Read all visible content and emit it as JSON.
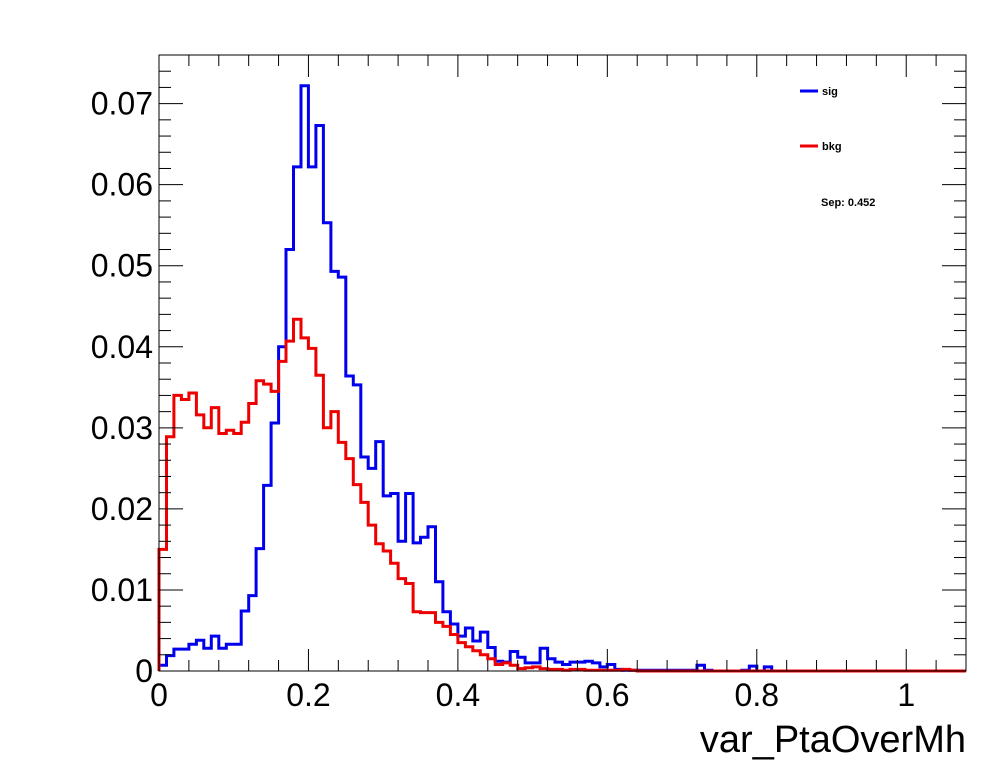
{
  "chart_data": {
    "type": "line",
    "title": "",
    "xlabel": "var_PtaOverMh",
    "ylabel": "",
    "xlim": [
      0,
      1.08
    ],
    "ylim": [
      0,
      0.076
    ],
    "grid": false,
    "legend_position": "top-right",
    "x_ticks": [
      {
        "value": 0,
        "label": "0"
      },
      {
        "value": 0.2,
        "label": "0.2"
      },
      {
        "value": 0.4,
        "label": "0.4"
      },
      {
        "value": 0.6,
        "label": "0.6"
      },
      {
        "value": 0.8,
        "label": "0.8"
      },
      {
        "value": 1.0,
        "label": "1"
      }
    ],
    "y_ticks": [
      {
        "value": 0,
        "label": "0"
      },
      {
        "value": 0.01,
        "label": "0.01"
      },
      {
        "value": 0.02,
        "label": "0.02"
      },
      {
        "value": 0.03,
        "label": "0.03"
      },
      {
        "value": 0.04,
        "label": "0.04"
      },
      {
        "value": 0.05,
        "label": "0.05"
      },
      {
        "value": 0.06,
        "label": "0.06"
      },
      {
        "value": 0.07,
        "label": "0.07"
      }
    ],
    "bin_width": 0.01,
    "series": [
      {
        "name": "sig",
        "color": "#0000ee",
        "values": [
          0.0007,
          0.0019,
          0.0027,
          0.0027,
          0.0033,
          0.0038,
          0.0028,
          0.0043,
          0.0028,
          0.0033,
          0.0033,
          0.0074,
          0.0093,
          0.0151,
          0.0229,
          0.0306,
          0.04,
          0.052,
          0.0622,
          0.0722,
          0.0622,
          0.0673,
          0.0553,
          0.0493,
          0.0486,
          0.0364,
          0.0353,
          0.0264,
          0.025,
          0.0283,
          0.0216,
          0.0219,
          0.016,
          0.0219,
          0.0158,
          0.0165,
          0.0178,
          0.011,
          0.0073,
          0.0058,
          0.0043,
          0.0053,
          0.0037,
          0.0048,
          0.0029,
          0.0012,
          0.0011,
          0.0024,
          0.0017,
          0.001,
          0.001,
          0.0028,
          0.0015,
          0.0011,
          0.0008,
          0.0011,
          0.0011,
          0.0012,
          0.001,
          0.0005,
          0.0008,
          0.0002,
          0.0001,
          0.0001,
          0.0001,
          0.0001,
          0.0001,
          0.0001,
          0.0001,
          0.0001,
          0.0001,
          0.0001,
          0.0007,
          0.0001,
          0,
          0,
          0,
          0,
          0.0001,
          0.0006,
          0,
          0.0005,
          0,
          0,
          0,
          0,
          0,
          0,
          0,
          0,
          0,
          0,
          0,
          0,
          0,
          0,
          0,
          0,
          0,
          0,
          0,
          0,
          0,
          0,
          0,
          0,
          0,
          0
        ]
      },
      {
        "name": "bkg",
        "color": "#ee0000",
        "values": [
          0.015,
          0.0289,
          0.034,
          0.0335,
          0.0343,
          0.0316,
          0.03,
          0.0325,
          0.0293,
          0.0297,
          0.0293,
          0.0307,
          0.033,
          0.0358,
          0.0354,
          0.0345,
          0.0382,
          0.0407,
          0.0434,
          0.0411,
          0.0398,
          0.0365,
          0.03,
          0.032,
          0.0282,
          0.0262,
          0.023,
          0.0208,
          0.018,
          0.0157,
          0.0148,
          0.0133,
          0.0114,
          0.0108,
          0.0073,
          0.0072,
          0.0072,
          0.006,
          0.0055,
          0.0045,
          0.0035,
          0.003,
          0.0025,
          0.002,
          0.0015,
          0.0008,
          0.001,
          0.0007,
          0.0003,
          0.0004,
          0.0005,
          0.0003,
          0.0002,
          0.0002,
          0.0001,
          0.0002,
          0.0002,
          0.0001,
          0.0001,
          0.0001,
          0.0001,
          0.0001,
          0.0002,
          0.0001,
          0,
          0,
          0,
          0,
          0,
          0,
          0,
          0,
          0,
          0,
          0,
          0,
          0,
          0,
          0,
          0,
          0,
          0,
          0,
          0,
          0,
          0,
          0,
          0,
          0,
          0,
          0,
          0,
          0,
          0,
          0,
          0,
          0,
          0,
          0,
          0,
          0,
          0,
          0,
          0,
          0,
          0,
          0,
          0
        ]
      }
    ],
    "annotations": [
      "Sep: 0.452"
    ]
  }
}
